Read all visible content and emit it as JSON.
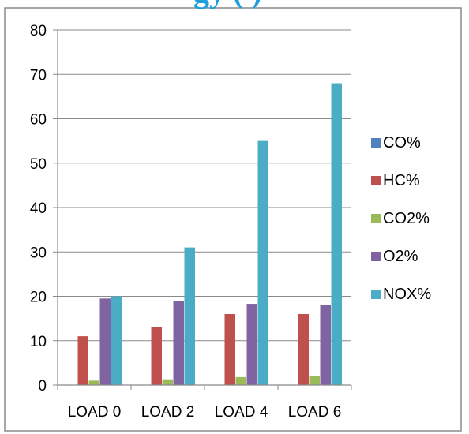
{
  "chart_title_fragment": "gy (          )",
  "chart_data": {
    "type": "bar",
    "title": "",
    "xlabel": "",
    "ylabel": "",
    "categories": [
      "LOAD 0",
      "LOAD 2",
      "LOAD 4",
      "LOAD 6"
    ],
    "ylim": [
      0,
      80
    ],
    "yticks": [
      0,
      10,
      20,
      30,
      40,
      50,
      60,
      70,
      80
    ],
    "grid": true,
    "legend_position": "right",
    "series": [
      {
        "name": "CO%",
        "color": "#4f81bd",
        "values": [
          0,
          0,
          0,
          0
        ]
      },
      {
        "name": "HC%",
        "color": "#c0504d",
        "values": [
          11,
          13,
          16,
          16
        ]
      },
      {
        "name": "CO2%",
        "color": "#9bbb59",
        "values": [
          1,
          1.3,
          1.8,
          2
        ]
      },
      {
        "name": "O2%",
        "color": "#8064a2",
        "values": [
          19.5,
          19,
          18.3,
          18
        ]
      },
      {
        "name": "NOX%",
        "color": "#4bacc6",
        "values": [
          20,
          31,
          55,
          68
        ]
      }
    ]
  }
}
